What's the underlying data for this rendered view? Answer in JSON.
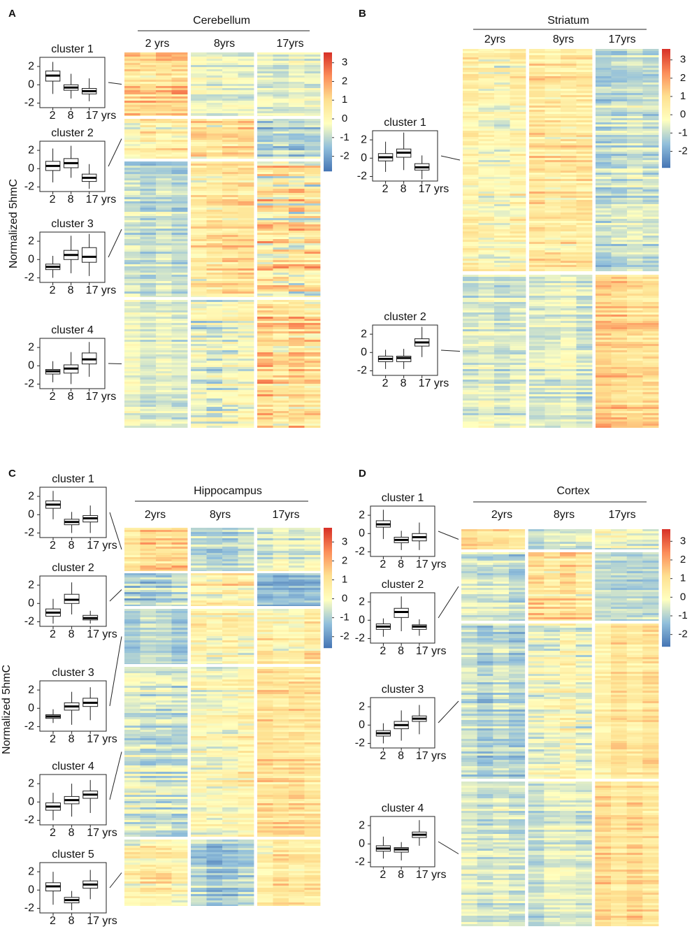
{
  "chart_data": [
    {
      "type": "heatmap-boxplot",
      "label": "A",
      "title": "Cerebellum",
      "columns": [
        "2 yrs",
        "8yrs",
        "17yrs"
      ],
      "ylabel": "Normalized 5hmC",
      "colorbar": {
        "ylim": [
          -2.8,
          3.55
        ],
        "yticks": [
          3,
          2,
          1,
          0,
          -1,
          -2
        ],
        "colors": [
          "#4575b4",
          "#91bfdb",
          "#ffffbf",
          "#fee090",
          "#fc8d59",
          "#d73027"
        ]
      },
      "box_ylim": [
        -2.5,
        3
      ],
      "box_yticks": [
        2,
        0,
        -2
      ],
      "clusters": [
        {
          "name": "cluster 1",
          "categories": [
            "2",
            "8",
            "17 yrs"
          ],
          "boxes": [
            [
              -1,
              0.4,
              1,
              1.5,
              2.5
            ],
            [
              -1.5,
              -0.6,
              -0.3,
              0,
              1.2
            ],
            [
              -1.8,
              -1,
              -0.7,
              -0.4,
              0.7
            ]
          ]
        },
        {
          "name": "cluster 2",
          "categories": [
            "2",
            "8",
            "17 yrs"
          ],
          "boxes": [
            [
              -1.5,
              -0.2,
              0.3,
              0.8,
              2.2
            ],
            [
              -1,
              0.1,
              0.6,
              1.1,
              2.5
            ],
            [
              -2.2,
              -1.4,
              -1,
              -0.6,
              0.5
            ]
          ]
        },
        {
          "name": "cluster 3",
          "categories": [
            "2",
            "8",
            "17 yrs"
          ],
          "boxes": [
            [
              -2,
              -1.1,
              -0.8,
              -0.5,
              0.4
            ],
            [
              -1.5,
              0,
              0.5,
              1,
              2.6
            ],
            [
              -1.8,
              -0.3,
              0.3,
              1.3,
              2.8
            ]
          ]
        },
        {
          "name": "cluster 4",
          "categories": [
            "2",
            "8",
            "17 yrs"
          ],
          "boxes": [
            [
              -1.8,
              -0.9,
              -0.6,
              -0.4,
              0.5
            ],
            [
              -2,
              -0.8,
              -0.3,
              0.1,
              1.5
            ],
            [
              -1.2,
              0.2,
              0.7,
              1.4,
              2.6
            ]
          ]
        }
      ]
    },
    {
      "type": "heatmap-boxplot",
      "label": "B",
      "title": "Striatum",
      "columns": [
        "2yrs",
        "8yrs",
        "17yrs"
      ],
      "colorbar": {
        "ylim": [
          -2.9,
          3.6
        ],
        "yticks": [
          3,
          2,
          1,
          0,
          -1,
          -2
        ],
        "colors": [
          "#4575b4",
          "#91bfdb",
          "#ffffbf",
          "#fee090",
          "#fc8d59",
          "#d73027"
        ]
      },
      "box_ylim": [
        -2.5,
        3
      ],
      "box_yticks": [
        2,
        0,
        -2
      ],
      "clusters": [
        {
          "name": "cluster 1",
          "categories": [
            "2",
            "8",
            "17 yrs"
          ],
          "boxes": [
            [
              -1.5,
              -0.3,
              0.1,
              0.5,
              1.8
            ],
            [
              -1.3,
              0.1,
              0.6,
              1,
              2.8
            ],
            [
              -2.3,
              -1.3,
              -1,
              -0.6,
              0.3
            ]
          ]
        },
        {
          "name": "cluster 2",
          "categories": [
            "2",
            "8",
            "17 yrs"
          ],
          "boxes": [
            [
              -1.8,
              -1,
              -0.7,
              -0.4,
              0.3
            ],
            [
              -1.8,
              -1,
              -0.6,
              -0.4,
              0.4
            ],
            [
              -0.5,
              0.7,
              1.1,
              1.5,
              2.8
            ]
          ]
        }
      ]
    },
    {
      "type": "heatmap-boxplot",
      "label": "C",
      "title": "Hippocampus",
      "columns": [
        "2yrs",
        "8yrs",
        "17yrs"
      ],
      "ylabel": "Normalized 5hmC",
      "colorbar": {
        "ylim": [
          -2.6,
          3.75
        ],
        "yticks": [
          3,
          2,
          1,
          0,
          -1,
          -2
        ],
        "colors": [
          "#4575b4",
          "#91bfdb",
          "#ffffbf",
          "#fee090",
          "#fc8d59",
          "#d73027"
        ]
      },
      "box_ylim": [
        -2.5,
        3
      ],
      "box_yticks": [
        2,
        0,
        -2
      ],
      "clusters": [
        {
          "name": "cluster 1",
          "categories": [
            "2",
            "8",
            "17 yrs"
          ],
          "boxes": [
            [
              -0.5,
              0.7,
              1.1,
              1.5,
              2.6
            ],
            [
              -2,
              -1.1,
              -0.8,
              -0.5,
              0.3
            ],
            [
              -2,
              -0.8,
              -0.4,
              -0.1,
              1
            ]
          ]
        },
        {
          "name": "cluster 2",
          "categories": [
            "2",
            "8",
            "17 yrs"
          ],
          "boxes": [
            [
              -2.2,
              -1.4,
              -1,
              -0.6,
              0.5
            ],
            [
              -1.2,
              0,
              0.4,
              1,
              2.3
            ],
            [
              -2.2,
              -1.8,
              -1.6,
              -1.3,
              -0.8
            ]
          ]
        },
        {
          "name": "cluster 3",
          "categories": [
            "2",
            "8",
            "17 yrs"
          ],
          "boxes": [
            [
              -1.6,
              -1.1,
              -0.9,
              -0.7,
              -0.1
            ],
            [
              -1.8,
              -0.2,
              0.2,
              0.6,
              1.8
            ],
            [
              -1.3,
              0.2,
              0.6,
              1.1,
              2.3
            ]
          ]
        },
        {
          "name": "cluster 4",
          "categories": [
            "2",
            "8",
            "17 yrs"
          ],
          "boxes": [
            [
              -2,
              -0.9,
              -0.5,
              -0.1,
              1
            ],
            [
              -1.6,
              -0.2,
              0.2,
              0.6,
              2
            ],
            [
              -1.2,
              0.4,
              0.8,
              1.2,
              2.4
            ]
          ]
        },
        {
          "name": "cluster 5",
          "categories": [
            "2",
            "8",
            "17 yrs"
          ],
          "boxes": [
            [
              -1.6,
              -0.1,
              0.4,
              0.8,
              2
            ],
            [
              -2.2,
              -1.4,
              -1.1,
              -0.8,
              -0.1
            ],
            [
              -1,
              0.2,
              0.6,
              1,
              2.2
            ]
          ]
        }
      ]
    },
    {
      "type": "heatmap-boxplot",
      "label": "D",
      "title": "Cortex",
      "columns": [
        "2yrs",
        "8yrs",
        "17yrs"
      ],
      "colorbar": {
        "ylim": [
          -2.65,
          3.65
        ],
        "yticks": [
          3,
          2,
          1,
          0,
          -1,
          -2
        ],
        "colors": [
          "#4575b4",
          "#91bfdb",
          "#ffffbf",
          "#fee090",
          "#fc8d59",
          "#d73027"
        ]
      },
      "box_ylim": [
        -2.5,
        3
      ],
      "box_yticks": [
        2,
        0,
        -2
      ],
      "clusters": [
        {
          "name": "cluster 1",
          "categories": [
            "2",
            "8",
            "17 yrs"
          ],
          "boxes": [
            [
              -0.6,
              0.7,
              1,
              1.4,
              2.6
            ],
            [
              -1.8,
              -1,
              -0.7,
              -0.4,
              0.3
            ],
            [
              -1.8,
              -0.8,
              -0.4,
              0,
              1.2
            ]
          ]
        },
        {
          "name": "cluster 2",
          "categories": [
            "2",
            "8",
            "17 yrs"
          ],
          "boxes": [
            [
              -1.8,
              -1,
              -0.7,
              -0.4,
              0.2
            ],
            [
              -1.2,
              0.3,
              0.9,
              1.3,
              2.6
            ],
            [
              -1.7,
              -1,
              -0.7,
              -0.5,
              0.1
            ]
          ]
        },
        {
          "name": "cluster 3",
          "categories": [
            "2",
            "8",
            "17 yrs"
          ],
          "boxes": [
            [
              -2,
              -1.2,
              -0.9,
              -0.6,
              0.2
            ],
            [
              -1.7,
              -0.4,
              0,
              0.4,
              1.6
            ],
            [
              -1,
              0.4,
              0.7,
              1,
              2.2
            ]
          ]
        },
        {
          "name": "cluster 4",
          "categories": [
            "2",
            "8",
            "17 yrs"
          ],
          "boxes": [
            [
              -1.6,
              -0.8,
              -0.5,
              -0.2,
              0.8
            ],
            [
              -1.8,
              -0.9,
              -0.6,
              -0.4,
              0.2
            ],
            [
              -0.2,
              0.7,
              1,
              1.3,
              2.6
            ]
          ]
        }
      ]
    }
  ]
}
